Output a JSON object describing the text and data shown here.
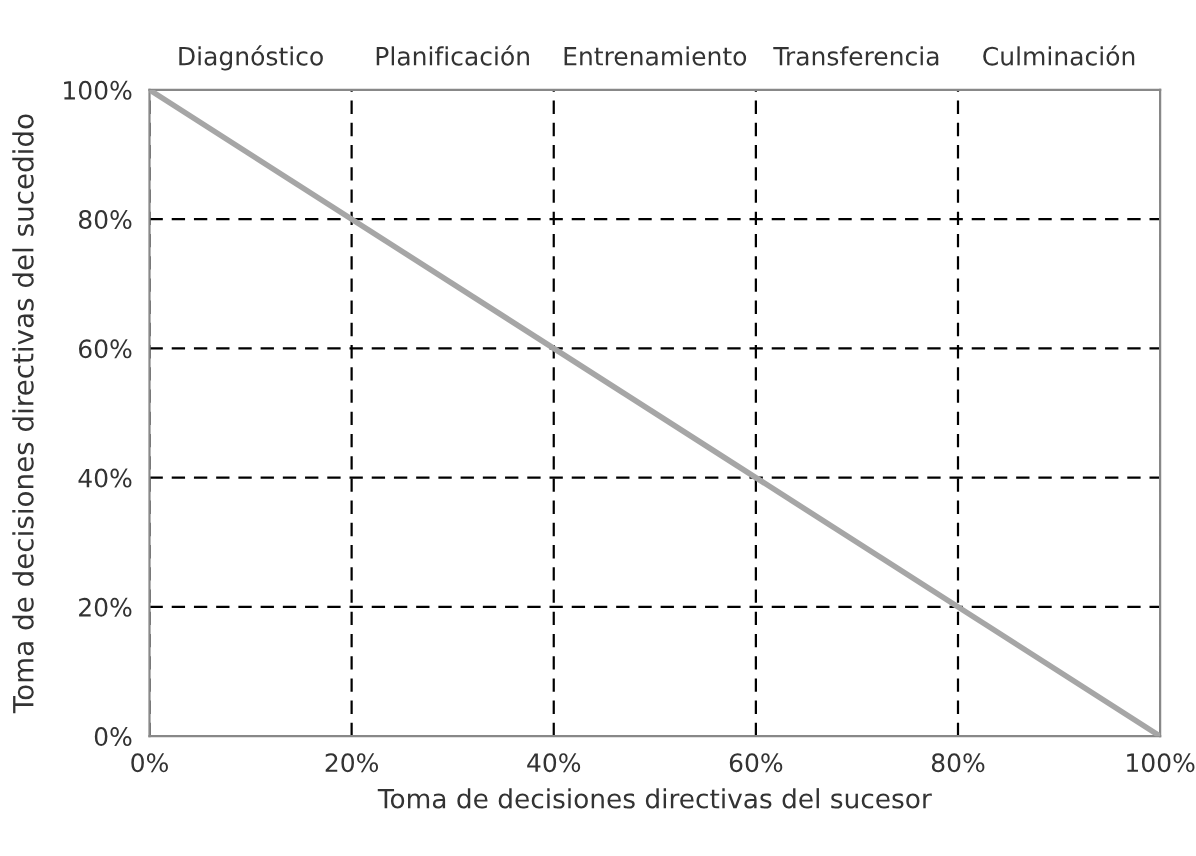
{
  "chart_data": {
    "type": "line",
    "xlabel": "Toma de decisiones directivas del sucesor",
    "ylabel": "Toma de decisiones directivas del sucedido",
    "x": [
      0,
      100
    ],
    "series": [
      {
        "color": "#a6a6a6",
        "values": [
          100,
          0
        ]
      }
    ],
    "xlim": [
      0,
      100
    ],
    "xticks": [
      {
        "value": 0,
        "label": "0%"
      },
      {
        "value": 20,
        "label": "20%"
      },
      {
        "value": 40,
        "label": "40%"
      },
      {
        "value": 60,
        "label": "60%"
      },
      {
        "value": 80,
        "label": "80%"
      },
      {
        "value": 100,
        "label": "100%"
      }
    ],
    "ylim": [
      0,
      100
    ],
    "yticks": [
      {
        "value": 0,
        "label": "0%"
      },
      {
        "value": 20,
        "label": "20%"
      },
      {
        "value": 40,
        "label": "40%"
      },
      {
        "value": 60,
        "label": "60%"
      },
      {
        "value": 80,
        "label": "80%"
      },
      {
        "value": 100,
        "label": "100%"
      }
    ],
    "annotations": [
      "Diagnóstico",
      "Planificación",
      "Entrenamiento",
      "Transferencia",
      "Culminación"
    ],
    "grid": true,
    "marker": "none",
    "line_style": "solid",
    "legend": false
  }
}
